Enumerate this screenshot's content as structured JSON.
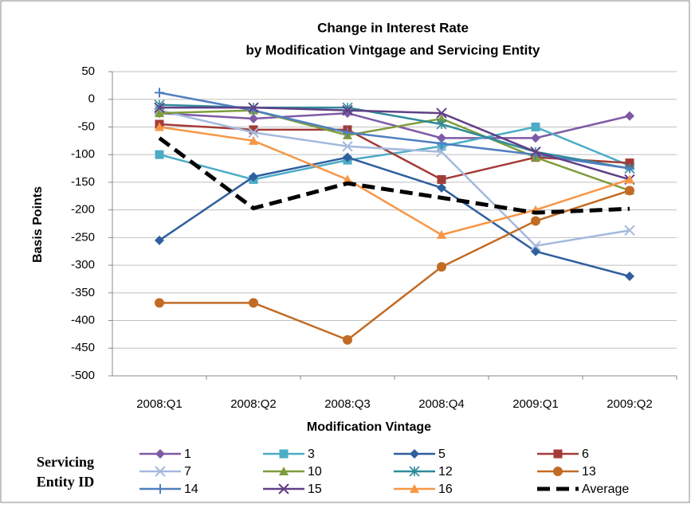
{
  "chart_data": {
    "type": "line",
    "title": "Change in Interest Rate",
    "subtitle": "by Modification Vintgage and Servicing Entity",
    "x_label": "Modification Vintage",
    "y_label": "Basis Points",
    "legend_title": [
      "Servicing",
      "Entity ID"
    ],
    "categories": [
      "2008:Q1",
      "2008:Q2",
      "2008:Q3",
      "2008:Q4",
      "2009:Q1",
      "2009:Q2"
    ],
    "ylim": [
      -500,
      50
    ],
    "yticks": [
      50,
      0,
      -50,
      -100,
      -150,
      -200,
      -250,
      -300,
      -350,
      -400,
      -450,
      -500
    ],
    "grid": true,
    "series": [
      {
        "name": "1",
        "color": "#7e5aa5",
        "marker": "diamond",
        "values": [
          -25,
          -35,
          -25,
          -70,
          -70,
          -30
        ]
      },
      {
        "name": "3",
        "color": "#4bacc6",
        "marker": "square",
        "values": [
          -100,
          -145,
          -110,
          -85,
          -50,
          -120
        ]
      },
      {
        "name": "5",
        "color": "#2f5f9d",
        "marker": "diamond",
        "values": [
          -255,
          -140,
          -105,
          -160,
          -275,
          -320
        ]
      },
      {
        "name": "6",
        "color": "#a33b37",
        "marker": "square",
        "values": [
          -45,
          -55,
          -55,
          -145,
          -105,
          -115
        ]
      },
      {
        "name": "7",
        "color": "#a5b9dd",
        "marker": "x",
        "values": [
          -20,
          -60,
          -85,
          -95,
          -265,
          -237
        ]
      },
      {
        "name": "10",
        "color": "#7f9c3d",
        "marker": "triangle",
        "values": [
          -25,
          -20,
          -65,
          -35,
          -105,
          -165
        ]
      },
      {
        "name": "12",
        "color": "#2f8a9a",
        "marker": "star",
        "values": [
          -10,
          -15,
          -15,
          -45,
          -95,
          -125
        ]
      },
      {
        "name": "13",
        "color": "#c26b24",
        "marker": "circle",
        "values": [
          -368,
          -368,
          -435,
          -303,
          -220,
          -165
        ]
      },
      {
        "name": "14",
        "color": "#4f7fc0",
        "marker": "plus",
        "values": [
          12,
          -20,
          -60,
          -80,
          -100,
          -125
        ]
      },
      {
        "name": "15",
        "color": "#603f86",
        "marker": "x",
        "values": [
          -15,
          -15,
          -20,
          -25,
          -95,
          -145
        ]
      },
      {
        "name": "16",
        "color": "#f79646",
        "marker": "triangle",
        "values": [
          -50,
          -75,
          -145,
          -245,
          -200,
          -145
        ]
      },
      {
        "name": "Average",
        "color": "#000000",
        "marker": "none",
        "dashed": true,
        "values": [
          -70,
          -197,
          -152,
          -178,
          -205,
          -198
        ]
      }
    ]
  }
}
